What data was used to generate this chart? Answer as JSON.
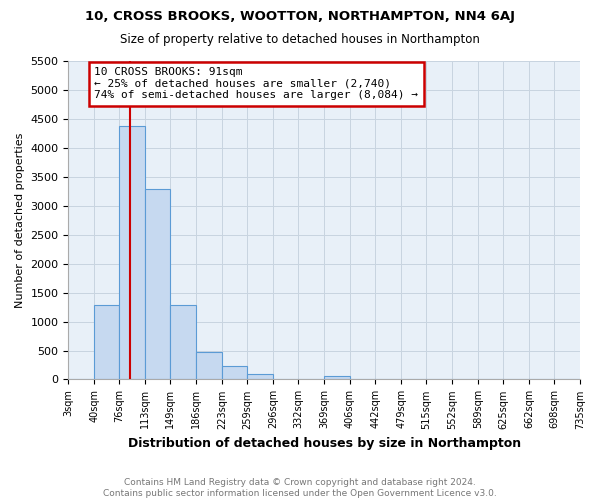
{
  "title1": "10, CROSS BROOKS, WOOTTON, NORTHAMPTON, NN4 6AJ",
  "title2": "Size of property relative to detached houses in Northampton",
  "xlabel": "Distribution of detached houses by size in Northampton",
  "ylabel": "Number of detached properties",
  "bin_edges": [
    3,
    40,
    76,
    113,
    149,
    186,
    223,
    259,
    296,
    332,
    369,
    406,
    442,
    479,
    515,
    552,
    589,
    625,
    662,
    698,
    735
  ],
  "bar_heights": [
    0,
    1280,
    4380,
    3300,
    1280,
    480,
    230,
    90,
    0,
    0,
    55,
    0,
    0,
    0,
    0,
    0,
    0,
    0,
    0,
    0
  ],
  "bar_color": "#c6d9f0",
  "bar_edge_color": "#5b9bd5",
  "red_line_x": 91,
  "annotation_line1": "10 CROSS BROOKS: 91sqm",
  "annotation_line2": "← 25% of detached houses are smaller (2,740)",
  "annotation_line3": "74% of semi-detached houses are larger (8,084) →",
  "annotation_box_color": "white",
  "annotation_box_edge_color": "#cc0000",
  "ylim": [
    0,
    5500
  ],
  "yticks": [
    0,
    500,
    1000,
    1500,
    2000,
    2500,
    3000,
    3500,
    4000,
    4500,
    5000,
    5500
  ],
  "footer_text": "Contains HM Land Registry data © Crown copyright and database right 2024.\nContains public sector information licensed under the Open Government Licence v3.0.",
  "grid_color": "#c8d4e0",
  "plot_bg_color": "#e8f0f8",
  "fig_bg_color": "#ffffff"
}
